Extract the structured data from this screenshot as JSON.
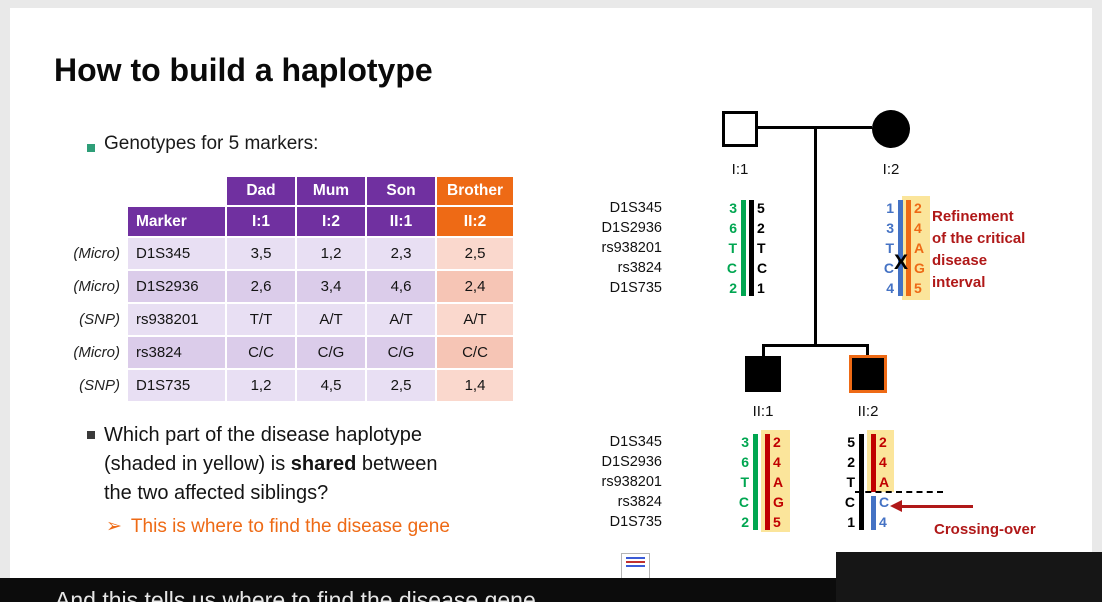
{
  "slide": {
    "title": "How to build a haplotype",
    "bullets": {
      "genotypes": "Genotypes for 5 markers:",
      "q_line1": "Which part of the disease haplotype",
      "q_line2_pre": "(shaded in yellow) is ",
      "q_line2_bold": "shared",
      "q_line2_post": " between",
      "q_line3": "the two affected siblings?",
      "sub_marker": "➢",
      "sub_text": "This is where to find the disease gene"
    }
  },
  "table": {
    "person_headers": [
      "Dad",
      "Mum",
      "Son",
      "Brother"
    ],
    "id_headers": [
      "Marker",
      "I:1",
      "I:2",
      "II:1",
      "II:2"
    ],
    "rows": [
      {
        "type": "(Micro)",
        "marker": "D1S345",
        "values": [
          "3,5",
          "1,2",
          "2,3",
          "2,5"
        ]
      },
      {
        "type": "(Micro)",
        "marker": "D1S2936",
        "values": [
          "2,6",
          "3,4",
          "4,6",
          "2,4"
        ]
      },
      {
        "type": "(SNP)",
        "marker": "rs938201",
        "values": [
          "T/T",
          "A/T",
          "A/T",
          "A/T"
        ]
      },
      {
        "type": "(Micro)",
        "marker": "rs3824",
        "values": [
          "C/C",
          "C/G",
          "C/G",
          "C/C"
        ]
      },
      {
        "type": "(SNP)",
        "marker": "D1S735",
        "values": [
          "1,2",
          "4,5",
          "2,5",
          "1,4"
        ]
      }
    ]
  },
  "pedigree": {
    "markers": [
      "D1S345",
      "D1S2936",
      "rs938201",
      "rs3824",
      "D1S735"
    ],
    "I1": {
      "label": "I:1",
      "left": [
        "3",
        "6",
        "T",
        "C",
        "2"
      ],
      "right": [
        "5",
        "2",
        "T",
        "C",
        "1"
      ]
    },
    "I2": {
      "label": "I:2",
      "left": [
        "1",
        "3",
        "T",
        "C",
        "4"
      ],
      "right": [
        "2",
        "4",
        "A",
        "G",
        "5"
      ],
      "x_mark": "X"
    },
    "II1": {
      "label": "II:1",
      "left": [
        "3",
        "6",
        "T",
        "C",
        "2"
      ],
      "right": [
        "2",
        "4",
        "A",
        "G",
        "5"
      ]
    },
    "II2": {
      "label": "II:2",
      "left": [
        "5",
        "2",
        "T",
        "C",
        "1"
      ],
      "right_top": [
        "2",
        "4",
        "A"
      ],
      "right_bottom": [
        "C",
        "4"
      ]
    },
    "refinement_lines": [
      "Refinement",
      "of the critical",
      "disease",
      "interval"
    ],
    "crossing_over_label": "Crossing-over"
  },
  "bottom": {
    "partial_text": "And this tells us where to find the disease gene"
  },
  "colors": {
    "purple": "#7030A0",
    "orange": "#EE6A15",
    "green": "#00A651",
    "blue": "#4472C4",
    "dark_red": "#C00000",
    "annotation_red": "#B01818",
    "yellow_highlight": "#FBE59B",
    "lavender_light": "#E8DFF3",
    "lavender_dark": "#DBCCEA",
    "salmon_light": "#FAD8CD",
    "salmon_dark": "#F6C5B5"
  }
}
